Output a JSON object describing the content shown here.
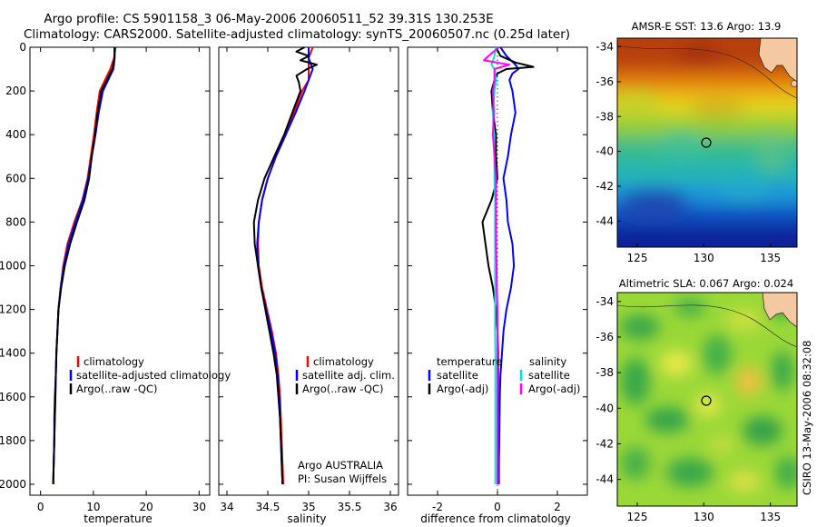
{
  "title": {
    "line1": "Argo profile: CS 5901158_3 06-May-2006 20060511_52 39.31S 130.253E",
    "line2": "Climatology: CARS2000. Satellite-adjusted climatology: synTS_20060507.nc (0.25d later)"
  },
  "chart_data": [
    {
      "type": "line",
      "id": "temperature",
      "xlabel": "temperature",
      "xlim": [
        -2,
        32
      ],
      "ylim": [
        0,
        2050
      ],
      "y_reversed": true,
      "xticks": [
        0,
        10,
        20,
        30
      ],
      "yticks": [
        0,
        200,
        400,
        600,
        800,
        1000,
        1200,
        1400,
        1600,
        1800,
        2000
      ],
      "legend": [
        "climatology",
        "satellite-adjusted climatology",
        "Argo(..raw -QC)"
      ],
      "series": [
        {
          "name": "climatology",
          "color": "#ff0000",
          "depth": [
            0,
            50,
            100,
            200,
            300,
            400,
            500,
            600,
            700,
            800,
            900,
            1000,
            1100,
            1200,
            1300,
            1400,
            1500,
            1600,
            1700,
            1800,
            1900,
            2000
          ],
          "values": [
            14.2,
            13.9,
            13.2,
            11.2,
            10.6,
            10.1,
            9.5,
            8.9,
            7.9,
            6.4,
            5.1,
            4.3,
            3.8,
            3.4,
            3.2,
            3.0,
            2.9,
            2.8,
            2.7,
            2.6,
            2.5,
            2.4
          ]
        },
        {
          "name": "satellite",
          "color": "#0000ff",
          "depth": [
            0,
            50,
            100,
            200,
            300,
            400,
            500,
            600,
            700,
            800,
            900,
            1000,
            1100,
            1200,
            1300,
            1400,
            1500,
            1600,
            1700,
            1800,
            1900,
            2000
          ],
          "values": [
            14.0,
            14.0,
            13.8,
            11.8,
            11.0,
            10.4,
            9.7,
            9.0,
            8.0,
            6.6,
            5.3,
            4.4,
            3.8,
            3.4,
            3.2,
            3.0,
            2.9,
            2.7,
            2.6,
            2.6,
            2.5,
            2.4
          ]
        },
        {
          "name": "Argo",
          "color": "#000000",
          "depth": [
            0,
            50,
            100,
            200,
            300,
            400,
            500,
            600,
            700,
            800,
            900,
            1000,
            1100,
            1200,
            1300,
            1400,
            1500,
            1600,
            1700,
            1800,
            1900,
            2000
          ],
          "values": [
            14.0,
            14.0,
            13.6,
            11.5,
            10.8,
            10.3,
            9.7,
            9.2,
            8.3,
            6.9,
            5.6,
            4.6,
            3.9,
            3.4,
            3.2,
            3.0,
            2.9,
            2.8,
            2.7,
            2.6,
            2.5,
            2.4
          ]
        }
      ]
    },
    {
      "type": "line",
      "id": "salinity",
      "xlabel": "salinity",
      "xlim": [
        33.9,
        36.1
      ],
      "ylim": [
        0,
        2050
      ],
      "y_reversed": true,
      "xticks": [
        34,
        34.5,
        35,
        35.5,
        36
      ],
      "legend": [
        "climatology",
        "satellite adj. clim.",
        "Argo(..raw -QC)"
      ],
      "annotation": [
        "Argo AUSTRALIA",
        "PI: Susan Wijffels"
      ],
      "series": [
        {
          "name": "climatology",
          "color": "#ff0000",
          "depth": [
            0,
            50,
            100,
            150,
            200,
            300,
            400,
            500,
            600,
            700,
            800,
            900,
            1000,
            1100,
            1200,
            1300,
            1400,
            1500,
            1600,
            1700,
            1800,
            1900,
            2000
          ],
          "values": [
            35.05,
            35.0,
            35.0,
            35.0,
            34.92,
            34.82,
            34.72,
            34.6,
            34.5,
            34.43,
            34.39,
            34.38,
            34.39,
            34.43,
            34.49,
            34.55,
            34.6,
            34.63,
            34.65,
            34.66,
            34.67,
            34.68,
            34.69
          ]
        },
        {
          "name": "satellite",
          "color": "#0000ff",
          "depth": [
            0,
            50,
            100,
            150,
            200,
            300,
            400,
            500,
            600,
            700,
            800,
            900,
            1000,
            1100,
            1200,
            1300,
            1400,
            1500,
            1600,
            1700,
            1800,
            1900,
            2000
          ],
          "values": [
            35.0,
            35.0,
            35.05,
            35.0,
            34.95,
            34.84,
            34.72,
            34.6,
            34.5,
            34.43,
            34.39,
            34.37,
            34.38,
            34.42,
            34.48,
            34.54,
            34.59,
            34.62,
            34.64,
            34.65,
            34.66,
            34.67,
            34.68
          ]
        },
        {
          "name": "Argo",
          "color": "#000000",
          "depth": [
            0,
            20,
            40,
            60,
            80,
            100,
            130,
            160,
            200,
            300,
            400,
            500,
            600,
            700,
            800,
            900,
            1000,
            1100,
            1200,
            1300,
            1400,
            1500,
            1600,
            1700,
            1800,
            1900,
            2000
          ],
          "values": [
            34.95,
            34.85,
            35.0,
            34.9,
            35.1,
            34.98,
            34.85,
            34.88,
            34.9,
            34.8,
            34.7,
            34.58,
            34.46,
            34.38,
            34.33,
            34.34,
            34.38,
            34.42,
            34.47,
            34.52,
            34.57,
            34.61,
            34.63,
            34.65,
            34.66,
            34.67,
            34.68
          ]
        }
      ]
    },
    {
      "type": "line",
      "id": "difference",
      "xlabel": "difference from climatology",
      "xlim": [
        -3,
        3
      ],
      "ylim": [
        0,
        2050
      ],
      "y_reversed": true,
      "xticks": [
        -2,
        0,
        2
      ],
      "legend_left": [
        "temperature",
        "satellite",
        "Argo(-adj)"
      ],
      "legend_right": [
        "salinity",
        "satellite",
        "Argo(-adj)"
      ],
      "series": [
        {
          "name": "temperature satellite",
          "color": "#0000ff",
          "depth": [
            0,
            40,
            80,
            100,
            120,
            150,
            200,
            300,
            400,
            500,
            600,
            700,
            800,
            900,
            1000,
            1100,
            1200,
            1300,
            1400,
            1500,
            1600,
            1700,
            1800,
            1900,
            2000
          ],
          "values": [
            0.1,
            0.3,
            0.6,
            0.7,
            0.5,
            0.4,
            0.5,
            0.6,
            0.45,
            0.35,
            0.2,
            0.3,
            0.35,
            0.5,
            0.55,
            0.45,
            0.3,
            0.2,
            0.15,
            0.1,
            0.08,
            0.07,
            0.06,
            0.05,
            0.05
          ]
        },
        {
          "name": "temperature Argo(-adj)",
          "color": "#000000",
          "depth": [
            0,
            40,
            70,
            90,
            100,
            120,
            150,
            200,
            300,
            400,
            500,
            600,
            700,
            800,
            900,
            1000,
            1100,
            1200,
            1300,
            1400,
            1500,
            1600,
            1700,
            1800,
            1900,
            2000
          ],
          "values": [
            -0.05,
            0.1,
            0.6,
            1.2,
            0.3,
            0.0,
            -0.1,
            -0.2,
            -0.15,
            -0.05,
            -0.05,
            0.0,
            -0.2,
            -0.5,
            -0.4,
            -0.3,
            -0.15,
            -0.05,
            0.0,
            0.02,
            0.02,
            0.02,
            0.01,
            0.01,
            0.01,
            0.01
          ]
        },
        {
          "name": "salinity satellite",
          "color": "#00e0e0",
          "depth": [
            0,
            40,
            80,
            100,
            150,
            200,
            300,
            400,
            500,
            600,
            700,
            800,
            900,
            1000,
            1100,
            1200,
            1300,
            1400,
            1500,
            1600,
            1700,
            1800,
            1900,
            2000
          ],
          "values": [
            -0.05,
            -0.1,
            -0.2,
            -0.1,
            -0.05,
            -0.1,
            -0.15,
            -0.12,
            -0.1,
            -0.1,
            -0.08,
            -0.08,
            -0.08,
            -0.08,
            -0.08,
            -0.08,
            -0.08,
            -0.07,
            -0.07,
            -0.07,
            -0.07,
            -0.07,
            -0.07,
            -0.07
          ]
        },
        {
          "name": "salinity Argo(-adj)",
          "color": "#ff00ff",
          "depth": [
            0,
            40,
            60,
            80,
            100,
            150,
            200,
            300,
            400,
            500,
            600,
            700,
            800,
            900,
            1000,
            1100,
            1200,
            1300,
            1400,
            1500,
            1600,
            1700,
            1800,
            1900,
            2000
          ],
          "values": [
            0.05,
            -0.3,
            -0.45,
            0.4,
            -0.1,
            -0.1,
            -0.15,
            -0.12,
            -0.15,
            -0.1,
            -0.05,
            -0.05,
            -0.05,
            -0.05,
            -0.03,
            -0.02,
            0.0,
            0.0,
            0.0,
            0.0,
            0.0,
            0.0,
            0.0,
            0.0,
            0.0
          ]
        }
      ]
    },
    {
      "type": "heatmap",
      "id": "sst-map",
      "title": "AMSR-E SST: 13.6 Argo: 13.9",
      "xlim": [
        123.5,
        137
      ],
      "ylim": [
        -45.5,
        -33.5
      ],
      "xticks": [
        125,
        130,
        135
      ],
      "yticks": [
        -34,
        -36,
        -38,
        -40,
        -42,
        -44
      ],
      "argo_position": [
        130.253,
        -39.31
      ]
    },
    {
      "type": "heatmap",
      "id": "sla-map",
      "title": "Altimetric SLA: 0.067 Argo: 0.024",
      "xlim": [
        123.5,
        137
      ],
      "ylim": [
        -45.5,
        -33.5
      ],
      "xticks": [
        125,
        130,
        135
      ],
      "yticks": [
        -34,
        -36,
        -38,
        -40,
        -42,
        -44
      ],
      "argo_position": [
        130.253,
        -39.31
      ]
    }
  ],
  "credit": "CSIRO 13-May-2006 08:32:08"
}
